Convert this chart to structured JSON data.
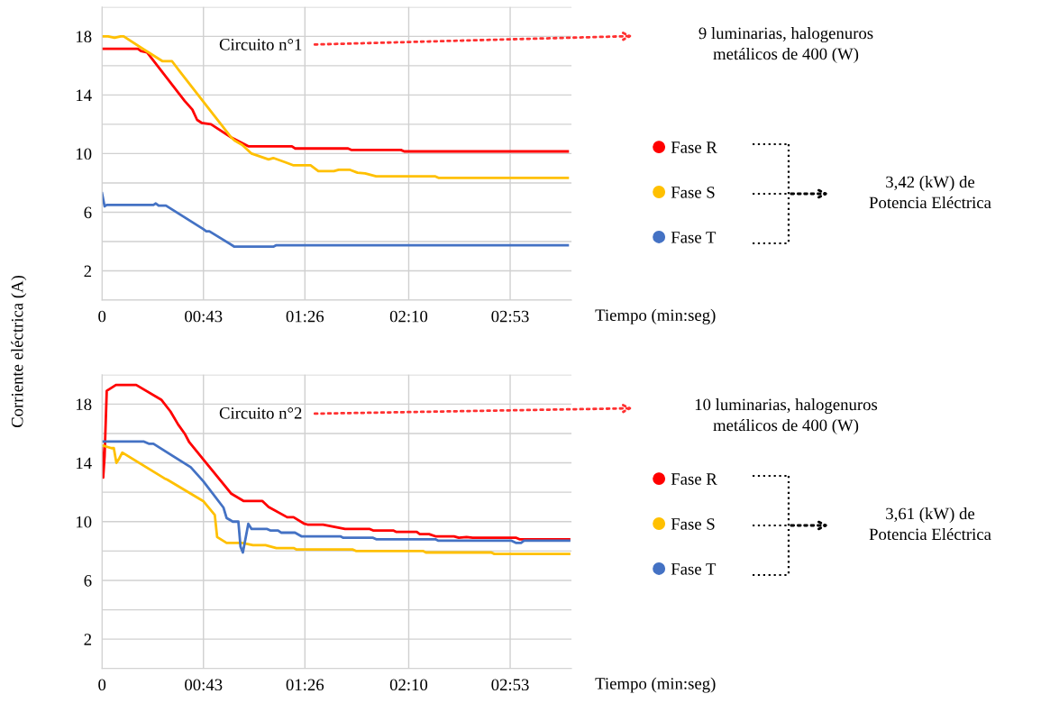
{
  "chart_data": [
    {
      "type": "line",
      "ylabel": "Corriente eléctrica (A)",
      "xlabel": "Tiempo (min:seg)",
      "annotations": [
        "Circuito n°1",
        "9 luminarias, halogenuros\nmetálicos de 400 (W)",
        "3,42 (kW) de\nPotencia Eléctrica"
      ],
      "xlim": [
        0,
        199
      ],
      "xticks": [
        0,
        {
          "value": 43,
          "label": "00:43"
        },
        {
          "value": 86,
          "label": "01:26"
        },
        {
          "value": 130,
          "label": "02:10"
        },
        {
          "value": 173,
          "label": "02:53"
        }
      ],
      "ylim": [
        0,
        20
      ],
      "yticks": [
        {
          "value": 0,
          "label": null
        },
        2,
        {
          "value": 4,
          "label": null
        },
        6,
        {
          "value": 8,
          "label": null
        },
        10,
        {
          "value": 12,
          "label": null
        },
        14,
        {
          "value": 16,
          "label": null
        },
        18,
        {
          "value": 20,
          "label": null
        }
      ],
      "grid": true,
      "legend": "right",
      "marker": "none",
      "line_style": "solid",
      "series": [
        {
          "name": "Fase R",
          "color": "#ff0000",
          "x": [
            0,
            15.2,
            16.5,
            19.1,
            35.0,
            38.3,
            40.3,
            42.2,
            46.2,
            54.8,
            62.0,
            80.5,
            81.8,
            104.3,
            105.6,
            126.7,
            128.1,
            197.4
          ],
          "values": [
            17.15,
            17.15,
            17.0,
            16.9,
            13.6,
            13.0,
            12.3,
            12.1,
            12.0,
            11.1,
            10.5,
            10.5,
            10.35,
            10.35,
            10.25,
            10.25,
            10.15,
            10.15
          ]
        },
        {
          "name": "Fase S",
          "color": "#ffc000",
          "x": [
            0,
            2.6,
            5.3,
            7.9,
            9.2,
            17.8,
            25.7,
            29.7,
            33.0,
            54.8,
            56.1,
            59.4,
            63.4,
            70.6,
            72.6,
            77.9,
            81.2,
            88.4,
            91.7,
            98.3,
            100.3,
            104.9,
            108.3,
            111.5,
            116.2,
            141.3,
            142.6,
            197.4
          ],
          "values": [
            18.0,
            18.0,
            17.9,
            18.0,
            18.0,
            17.1,
            16.3,
            16.3,
            15.6,
            11.1,
            10.9,
            10.6,
            10.0,
            9.6,
            9.7,
            9.4,
            9.2,
            9.2,
            8.8,
            8.8,
            8.9,
            8.9,
            8.7,
            8.65,
            8.45,
            8.45,
            8.35,
            8.35
          ]
        },
        {
          "name": "Fase T",
          "color": "#4472c4",
          "x": [
            0,
            1.1,
            2.0,
            21.8,
            22.8,
            24.0,
            27.1,
            42.9,
            44.2,
            45.5,
            56.1,
            72.6,
            73.9,
            197.4
          ],
          "values": [
            7.3,
            6.4,
            6.5,
            6.5,
            6.6,
            6.45,
            6.45,
            4.85,
            4.7,
            4.7,
            3.65,
            3.65,
            3.75,
            3.75
          ]
        }
      ]
    },
    {
      "type": "line",
      "xlabel": "Tiempo (min:seg)",
      "annotations": [
        "Circuito n°2",
        "10 luminarias, halogenuros\nmetálicos de 400 (W)",
        "3,61 (kW) de\nPotencia Eléctrica"
      ],
      "xlim": [
        0,
        199
      ],
      "xticks": [
        0,
        {
          "value": 43,
          "label": "00:43"
        },
        {
          "value": 86,
          "label": "01:26"
        },
        {
          "value": 130,
          "label": "02:10"
        },
        {
          "value": 173,
          "label": "02:53"
        }
      ],
      "ylim": [
        0,
        20
      ],
      "yticks": [
        {
          "value": 0,
          "label": null
        },
        2,
        {
          "value": 4,
          "label": null
        },
        6,
        {
          "value": 8,
          "label": null
        },
        10,
        {
          "value": 12,
          "label": null
        },
        14,
        {
          "value": 16,
          "label": null
        },
        18,
        {
          "value": 20,
          "label": null
        }
      ],
      "grid": true,
      "legend": "right",
      "marker": "none",
      "line_style": "solid",
      "series": [
        {
          "name": "Fase R",
          "color": "#ff0000",
          "x": [
            0,
            0.5,
            1.1,
            2.0,
            5.9,
            14.5,
            25.1,
            29.0,
            32.3,
            35.0,
            37.0,
            54.8,
            60.1,
            68.0,
            70.6,
            78.5,
            81.2,
            85.8,
            87.1,
            93.7,
            103.0,
            113.5,
            114.9,
            123.4,
            124.8,
            133.4,
            134.7,
            138.6,
            141.3,
            149.2,
            151.2,
            154.5,
            157.1,
            175.6,
            176.9,
            198.0
          ],
          "values": [
            15.0,
            13.0,
            14.45,
            18.9,
            19.3,
            19.3,
            18.3,
            17.5,
            16.6,
            16.0,
            15.4,
            11.9,
            11.4,
            11.4,
            11.0,
            10.3,
            10.3,
            9.85,
            9.8,
            9.8,
            9.5,
            9.5,
            9.4,
            9.4,
            9.3,
            9.3,
            9.15,
            9.15,
            9.0,
            9.0,
            8.9,
            8.95,
            8.9,
            8.9,
            8.8,
            8.8
          ]
        },
        {
          "name": "Fase S",
          "color": "#ffc000",
          "x": [
            0,
            4.0,
            5.0,
            6.1,
            7.3,
            8.6,
            26.4,
            27.7,
            42.9,
            47.8,
            48.8,
            52.8,
            59.4,
            64.0,
            69.3,
            73.9,
            81.2,
            82.5,
            106.3,
            107.6,
            136.0,
            137.3,
            165.0,
            166.3,
            198.0
          ],
          "values": [
            15.2,
            15.0,
            15.0,
            14.0,
            14.3,
            14.7,
            12.95,
            12.85,
            11.4,
            10.45,
            8.95,
            8.55,
            8.55,
            8.4,
            8.4,
            8.2,
            8.2,
            8.1,
            8.1,
            8.0,
            8.0,
            7.9,
            7.9,
            7.8,
            7.8
          ]
        },
        {
          "name": "Fase T",
          "color": "#4472c4",
          "x": [
            0,
            17.8,
            19.8,
            21.8,
            37.6,
            42.9,
            51.5,
            52.8,
            55.4,
            57.8,
            58.7,
            59.7,
            60.7,
            62.0,
            63.4,
            70.0,
            71.3,
            74.6,
            75.9,
            81.8,
            84.5,
            101.0,
            102.3,
            114.9,
            116.2,
            141.3,
            142.6,
            173.6,
            175.6,
            177.6,
            178.9,
            198.0
          ],
          "values": [
            15.45,
            15.45,
            15.3,
            15.3,
            13.7,
            12.75,
            10.95,
            10.25,
            10.0,
            10.0,
            8.3,
            7.9,
            8.75,
            9.85,
            9.5,
            9.5,
            9.4,
            9.4,
            9.25,
            9.25,
            9.0,
            9.0,
            8.9,
            8.9,
            8.8,
            8.8,
            8.7,
            8.7,
            8.55,
            8.55,
            8.7,
            8.7
          ]
        }
      ]
    }
  ]
}
